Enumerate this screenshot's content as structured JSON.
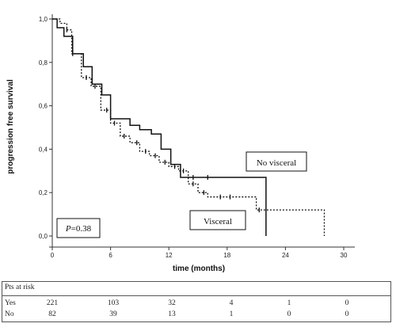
{
  "chart_data": {
    "type": "line",
    "title": "",
    "xlabel": "time (months)",
    "ylabel": "progression free survival",
    "xlim": [
      0,
      30
    ],
    "ylim": [
      0,
      1.0
    ],
    "x_ticks": [
      0,
      6,
      12,
      18,
      24,
      30
    ],
    "y_ticks": [
      0.0,
      0.2,
      0.4,
      0.6,
      0.8,
      1.0
    ],
    "x_tick_labels": [
      "0",
      "6",
      "12",
      "18",
      "24",
      "30"
    ],
    "y_tick_labels": [
      "0,0",
      "0,2",
      "0,4",
      "0,6",
      "0,8",
      "1,0"
    ],
    "grid": false,
    "series": [
      {
        "name": "No visceral",
        "style": "solid",
        "color": "#111111",
        "points": [
          [
            0,
            1.0
          ],
          [
            0.5,
            0.96
          ],
          [
            1.2,
            0.92
          ],
          [
            2.1,
            0.84
          ],
          [
            3.2,
            0.78
          ],
          [
            4.1,
            0.7
          ],
          [
            5.1,
            0.65
          ],
          [
            6.0,
            0.54
          ],
          [
            8.0,
            0.51
          ],
          [
            9.0,
            0.49
          ],
          [
            10.2,
            0.47
          ],
          [
            11.2,
            0.4
          ],
          [
            12.2,
            0.33
          ],
          [
            13.2,
            0.27
          ],
          [
            22.0,
            0.0
          ]
        ],
        "censored": [
          [
            14.5,
            0.27
          ],
          [
            16.0,
            0.27
          ]
        ]
      },
      {
        "name": "Visceral",
        "style": "dotted",
        "color": "#111111",
        "points": [
          [
            0,
            1.0
          ],
          [
            0.8,
            0.98
          ],
          [
            1.5,
            0.95
          ],
          [
            2.0,
            0.84
          ],
          [
            3.0,
            0.73
          ],
          [
            4.0,
            0.69
          ],
          [
            5.0,
            0.58
          ],
          [
            6.0,
            0.52
          ],
          [
            7.0,
            0.46
          ],
          [
            8.0,
            0.43
          ],
          [
            9.0,
            0.39
          ],
          [
            10.0,
            0.37
          ],
          [
            11.0,
            0.34
          ],
          [
            12.0,
            0.32
          ],
          [
            13.0,
            0.3
          ],
          [
            14.0,
            0.24
          ],
          [
            15.0,
            0.2
          ],
          [
            16.0,
            0.18
          ],
          [
            18.0,
            0.18
          ],
          [
            21.0,
            0.12
          ],
          [
            28.0,
            0.0
          ]
        ],
        "censored": [
          [
            1.5,
            0.95
          ],
          [
            2.1,
            0.84
          ],
          [
            3.5,
            0.73
          ],
          [
            4.4,
            0.69
          ],
          [
            5.6,
            0.58
          ],
          [
            6.4,
            0.52
          ],
          [
            7.4,
            0.46
          ],
          [
            8.7,
            0.43
          ],
          [
            9.6,
            0.39
          ],
          [
            10.6,
            0.37
          ],
          [
            11.6,
            0.34
          ],
          [
            12.6,
            0.32
          ],
          [
            13.5,
            0.3
          ],
          [
            14.5,
            0.24
          ],
          [
            15.6,
            0.2
          ],
          [
            17.3,
            0.18
          ],
          [
            18.3,
            0.18
          ],
          [
            21.3,
            0.12
          ]
        ]
      }
    ],
    "annotations": {
      "p_italic": "P",
      "p_value": "=0.38"
    }
  },
  "risk_table": {
    "title": "Pts at risk",
    "rows": [
      {
        "label": "Yes",
        "values": [
          "221",
          "103",
          "32",
          "4",
          "1",
          "0"
        ]
      },
      {
        "label": "No",
        "values": [
          "82",
          "39",
          "13",
          "1",
          "0",
          "0"
        ]
      }
    ]
  }
}
